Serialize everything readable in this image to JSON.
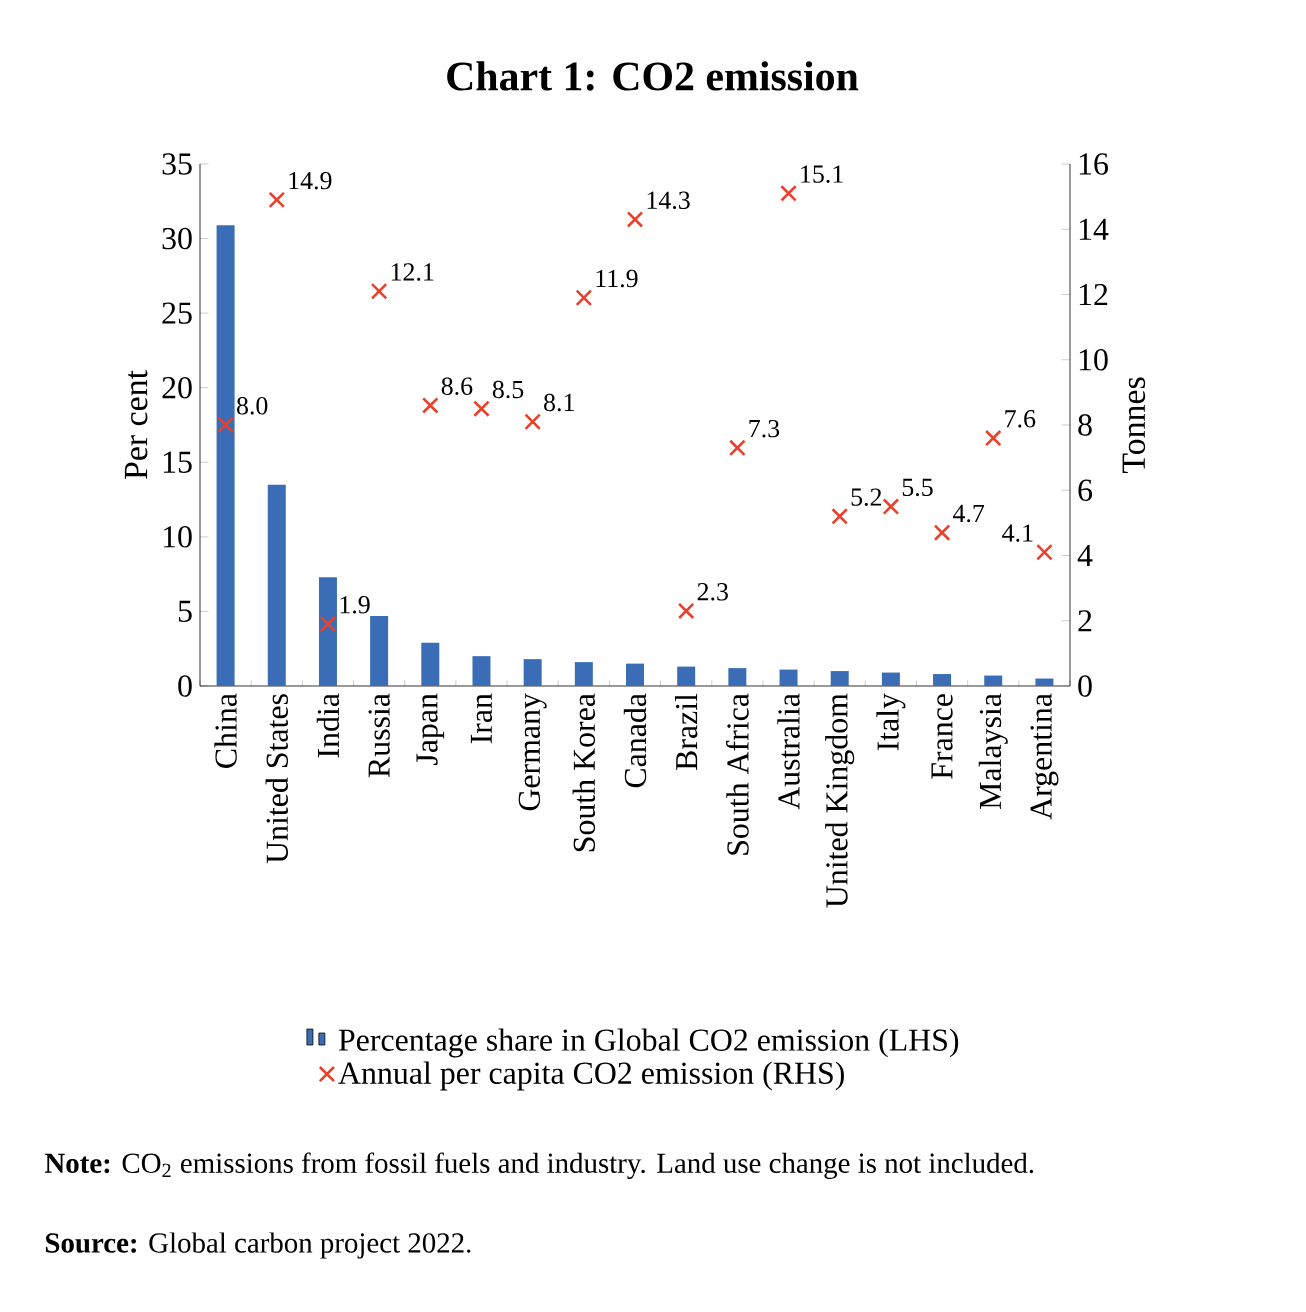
{
  "chart_data": {
    "type": "bar",
    "title": "Chart 1: CO2 emission",
    "categories": [
      "China",
      "United States",
      "India",
      "Russia",
      "Japan",
      "Iran",
      "Germany",
      "South Korea",
      "Canada",
      "Brazil",
      "South Africa",
      "Australia",
      "United Kingdom",
      "Italy",
      "France",
      "Malaysia",
      "Argentina"
    ],
    "series": [
      {
        "name": "Percentage share in Global CO2 emission (LHS)",
        "color": "#3a6db5",
        "values": [
          30.9,
          13.5,
          7.3,
          4.7,
          2.9,
          2.0,
          1.8,
          1.6,
          1.5,
          1.3,
          1.2,
          1.1,
          1.0,
          0.9,
          0.8,
          0.7,
          0.5
        ]
      },
      {
        "name": "Annual per capita CO2 emission (RHS)",
        "type": "scatter",
        "axis": "y2",
        "color": "#e8402a",
        "marker": "cross",
        "values": [
          8.0,
          14.9,
          1.9,
          12.1,
          8.6,
          8.5,
          8.1,
          11.9,
          14.3,
          2.3,
          7.3,
          15.1,
          5.2,
          5.5,
          4.7,
          7.6,
          4.1
        ],
        "value_labels": [
          "8.0",
          "14.9",
          "1.9",
          "12.1",
          "8.6",
          "8.5",
          "8.1",
          "11.9",
          "14.3",
          "2.3",
          "7.3",
          "15.1",
          "5.2",
          "5.5",
          "4.7",
          "7.6",
          "4.1"
        ]
      }
    ],
    "ylabel": "Per cent",
    "y2label": "Tonnes",
    "ylim": [
      0,
      35
    ],
    "yticks": [
      0,
      5,
      10,
      15,
      20,
      25,
      30,
      35
    ],
    "y2lim": [
      0,
      16
    ],
    "y2ticks": [
      0,
      2,
      4,
      6,
      8,
      10,
      12,
      14,
      16
    ],
    "grid": false,
    "legend": "bottom",
    "annotations": [
      "**Note:** CO$_{2}$ emissions from fossil fuels and industry. Land use change is not included.",
      "**Source:** Global carbon project 2022."
    ]
  }
}
